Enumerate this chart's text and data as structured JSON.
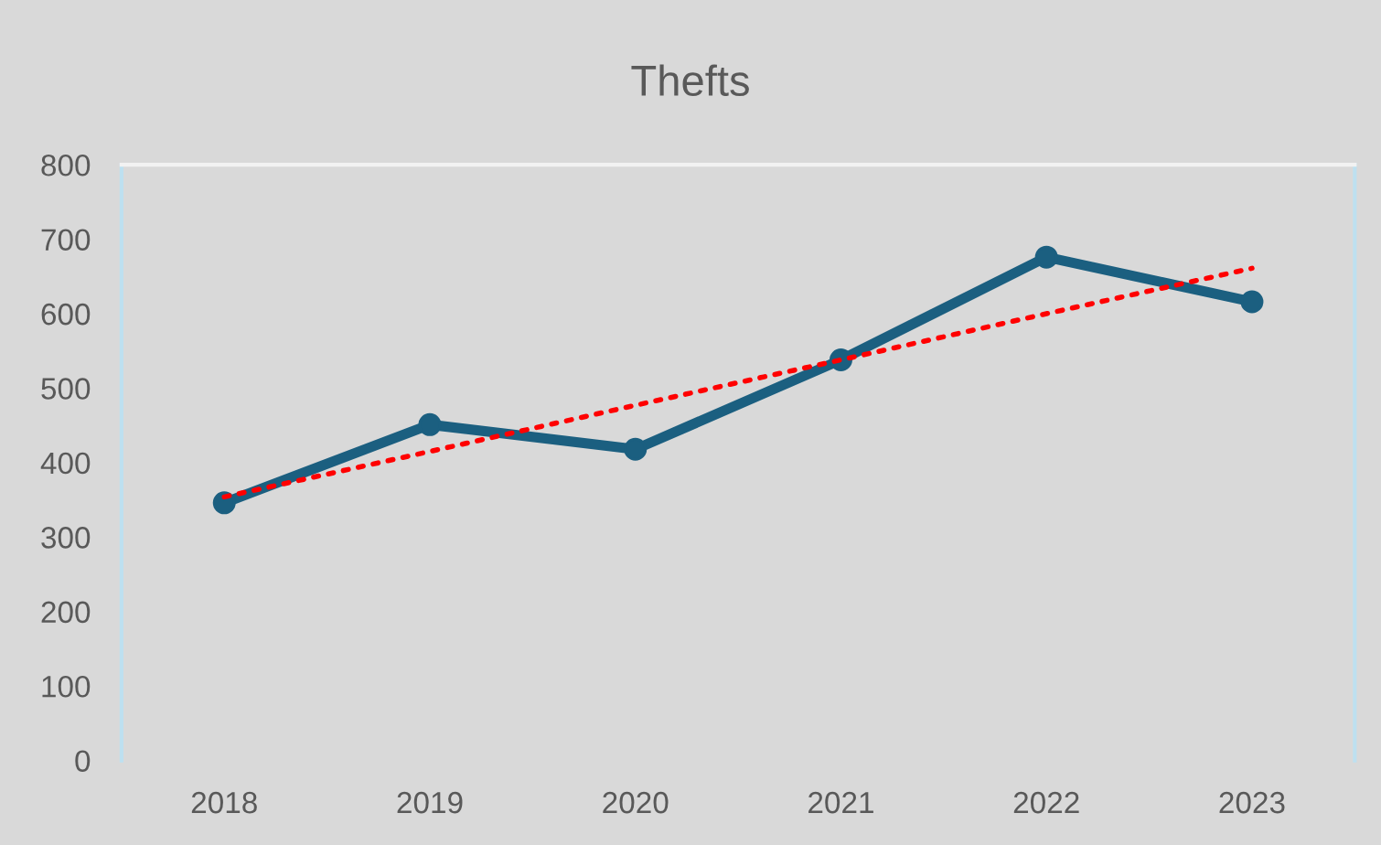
{
  "chart_data": {
    "type": "line",
    "title": "Thefts",
    "categories": [
      "2018",
      "2019",
      "2020",
      "2021",
      "2022",
      "2023"
    ],
    "series": [
      {
        "color": "#1b5f80",
        "values": [
          346,
          451,
          418,
          538,
          676,
          616
        ],
        "marker": "circle",
        "line_style": "solid"
      },
      {
        "type": "line",
        "color": "#ff0000",
        "values": [
          354,
          415,
          477,
          538,
          600,
          661
        ],
        "marker": "none",
        "line_style": "dotted"
      }
    ],
    "ylim": [
      0,
      800
    ],
    "yticks": [
      0,
      100,
      200,
      300,
      400,
      500,
      600,
      700,
      800
    ],
    "grid": false,
    "legend": false
  }
}
